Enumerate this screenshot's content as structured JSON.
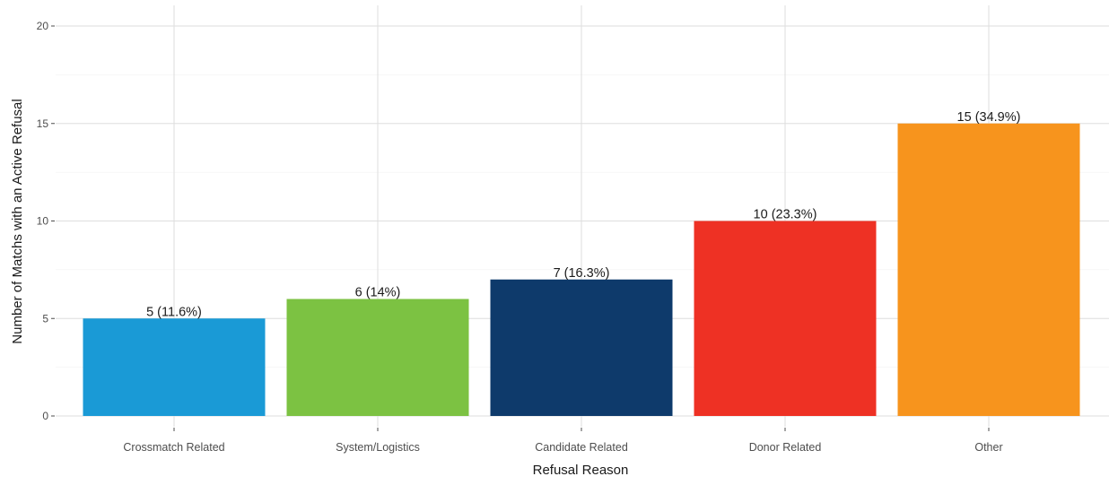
{
  "chart_data": {
    "type": "bar",
    "title": "",
    "xlabel": "Refusal Reason",
    "ylabel": "Number of Matchs with an Active Refusal",
    "ylim": [
      0,
      20
    ],
    "yticks": [
      0,
      5,
      10,
      15,
      20
    ],
    "grid": true,
    "legend": "none",
    "categories": [
      "Crossmatch Related",
      "System/Logistics",
      "Candidate Related",
      "Donor Related",
      "Other"
    ],
    "values": [
      5,
      6,
      7,
      10,
      15
    ],
    "data_labels": [
      "5 (11.6%)",
      "6 (14%)",
      "7 (16.3%)",
      "10 (23.3%)",
      "15 (34.9%)"
    ],
    "colors": [
      "#1a9ad6",
      "#7cc242",
      "#0e3a6b",
      "#ee3124",
      "#f7941d"
    ]
  }
}
